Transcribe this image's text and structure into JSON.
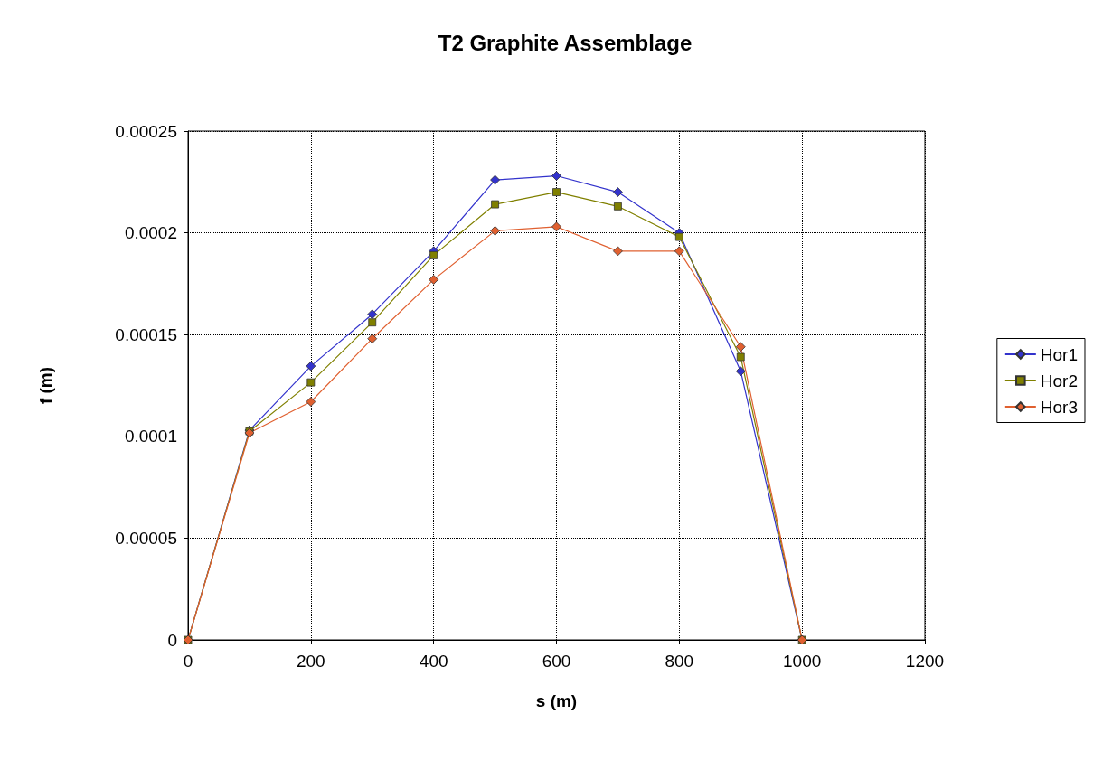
{
  "chart_data": {
    "type": "line",
    "title": "T2 Graphite Assemblage",
    "xlabel": "s (m)",
    "ylabel": "f (m)",
    "x": [
      0,
      100,
      200,
      300,
      400,
      500,
      600,
      700,
      800,
      900,
      1000
    ],
    "series": [
      {
        "name": "Hor1",
        "color": "#3333cc",
        "marker": "diamond",
        "values": [
          0,
          0.000103,
          0.0001345,
          0.00016,
          0.000191,
          0.000226,
          0.000228,
          0.00022,
          0.0002,
          0.000132,
          0
        ]
      },
      {
        "name": "Hor2",
        "color": "#808000",
        "marker": "square",
        "values": [
          0,
          0.0001025,
          0.0001265,
          0.000156,
          0.000189,
          0.000214,
          0.00022,
          0.000213,
          0.000198,
          0.000139,
          0
        ]
      },
      {
        "name": "Hor3",
        "color": "#e06030",
        "marker": "diamond",
        "values": [
          0,
          0.0001017,
          0.000117,
          0.000148,
          0.000177,
          0.000201,
          0.000203,
          0.000191,
          0.000191,
          0.000144,
          0
        ]
      }
    ],
    "xlim": [
      0,
      1200
    ],
    "xticks": [
      0,
      200,
      400,
      600,
      800,
      1000,
      1200
    ],
    "ylim": [
      0,
      0.00025
    ],
    "yticks": [
      0,
      {
        "value": 5e-05,
        "label": "0.00005"
      },
      0.0001,
      0.00015,
      0.0002,
      0.00025
    ],
    "grid": true,
    "legend": "right",
    "line_style": "solid"
  }
}
